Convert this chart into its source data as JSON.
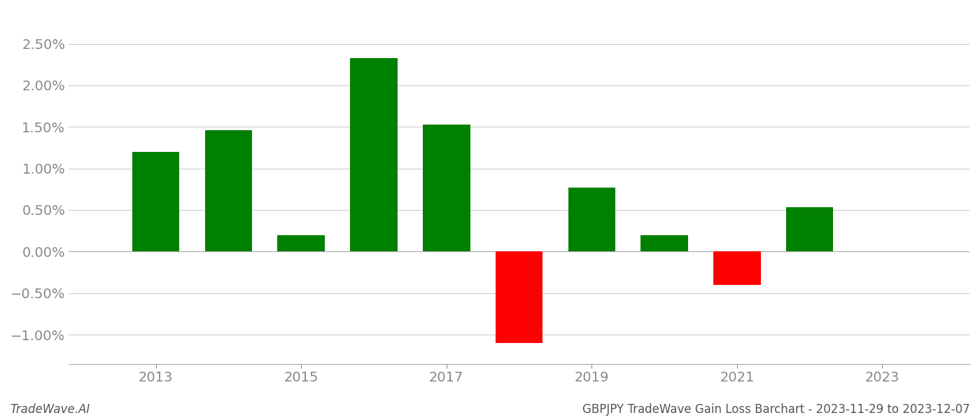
{
  "years": [
    2013,
    2014,
    2015,
    2016,
    2017,
    2018,
    2019,
    2020,
    2021,
    2022
  ],
  "values": [
    1.2,
    1.46,
    0.2,
    2.33,
    1.53,
    -1.1,
    0.77,
    0.2,
    -0.4,
    0.53
  ],
  "colors": [
    "#008000",
    "#008000",
    "#008000",
    "#008000",
    "#008000",
    "#ff0000",
    "#008000",
    "#008000",
    "#ff0000",
    "#008000"
  ],
  "ylim": [
    -1.35,
    2.85
  ],
  "yticks": [
    -1.0,
    -0.5,
    0.0,
    0.5,
    1.0,
    1.5,
    2.0,
    2.5
  ],
  "ytick_labels": [
    "−1.00%",
    "−0.50%",
    "0.00%",
    "0.50%",
    "1.00%",
    "1.50%",
    "2.00%",
    "2.50%"
  ],
  "xticks": [
    2013,
    2015,
    2017,
    2019,
    2021,
    2023
  ],
  "xlim": [
    2011.8,
    2024.2
  ],
  "footer_left": "TradeWave.AI",
  "footer_right": "GBPJPY TradeWave Gain Loss Barchart - 2023-11-29 to 2023-12-07",
  "background_color": "#ffffff",
  "bar_width": 0.65,
  "grid_color": "#cccccc",
  "axis_color": "#aaaaaa",
  "tick_color": "#888888",
  "font_size_ticks": 14,
  "font_size_footer": 12
}
